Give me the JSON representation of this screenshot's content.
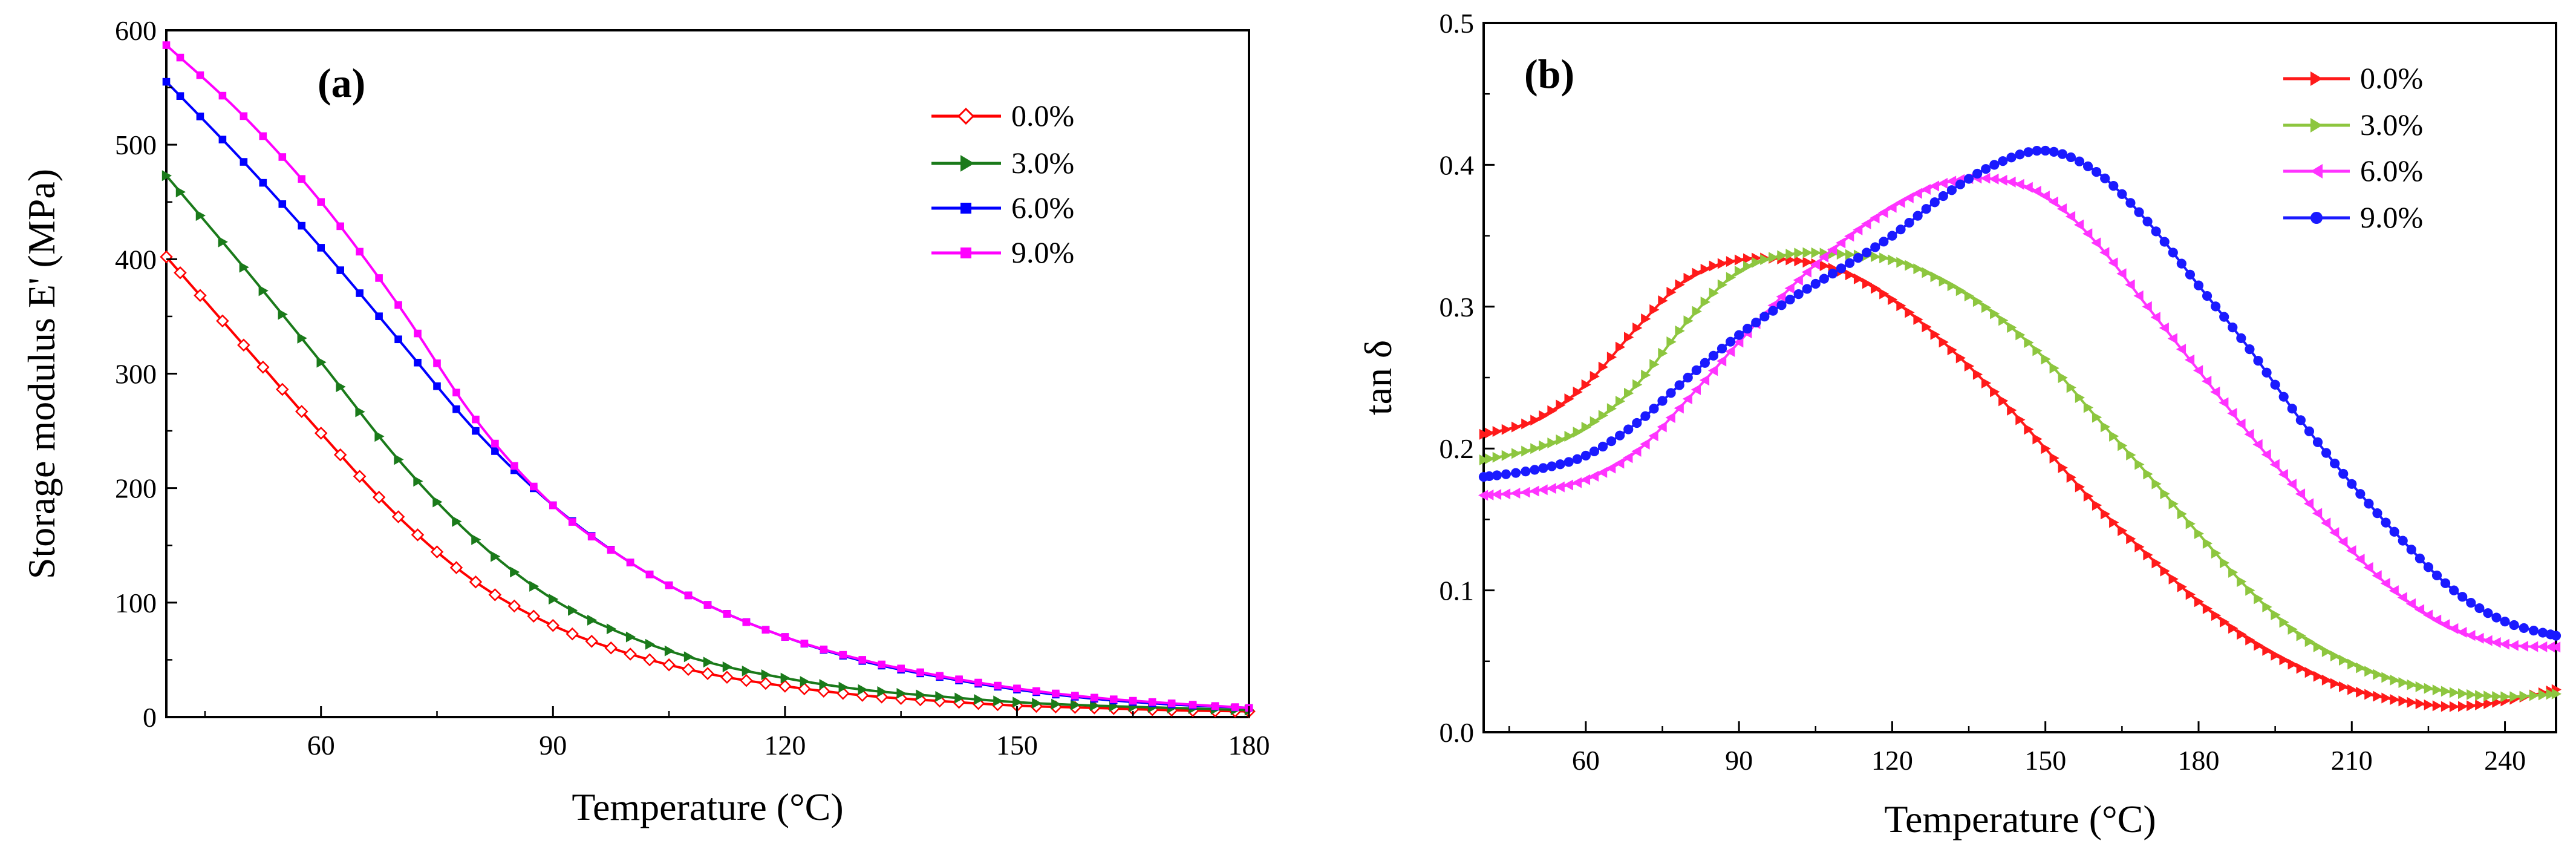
{
  "chart_data": [
    {
      "type": "line",
      "panel_label": "(a)",
      "title": "",
      "xlabel": "Temperature (°C)",
      "ylabel": "Storage modulus E' (MPa)",
      "xlim": [
        40,
        180
      ],
      "ylim": [
        0,
        600
      ],
      "xticks": [
        60,
        90,
        120,
        150,
        180
      ],
      "xtick_labels": [
        "60",
        "90",
        "120",
        "150",
        "180"
      ],
      "yticks": [
        0,
        100,
        200,
        300,
        400,
        500,
        600
      ],
      "ytick_labels": [
        "0",
        "100",
        "200",
        "300",
        "400",
        "500",
        "600"
      ],
      "grid": false,
      "legend_position": "top-right",
      "series": [
        {
          "name": "0.0%",
          "color": "#ff0000",
          "marker": "diamond",
          "x": [
            40,
            50,
            60,
            70,
            80,
            90,
            100,
            110,
            120,
            130,
            140,
            150,
            160,
            170,
            180
          ],
          "values": [
            402,
            325,
            248,
            175,
            118,
            80,
            55,
            38,
            27,
            19,
            14,
            10,
            8,
            6,
            5
          ]
        },
        {
          "name": "3.0%",
          "color": "#1a7a1a",
          "marker": "triangle-right",
          "x": [
            40,
            50,
            60,
            70,
            80,
            90,
            100,
            110,
            120,
            130,
            140,
            150,
            160,
            170,
            180
          ],
          "values": [
            473,
            393,
            310,
            225,
            155,
            103,
            70,
            48,
            34,
            24,
            18,
            13,
            10,
            8,
            6
          ]
        },
        {
          "name": "6.0%",
          "color": "#0000ff",
          "marker": "square",
          "x": [
            40,
            50,
            60,
            70,
            80,
            90,
            100,
            110,
            120,
            130,
            140,
            150,
            160,
            170,
            180
          ],
          "values": [
            555,
            485,
            410,
            330,
            250,
            185,
            135,
            98,
            70,
            49,
            35,
            24,
            16,
            11,
            8
          ]
        },
        {
          "name": "9.0%",
          "color": "#ff00ff",
          "marker": "square",
          "x": [
            40,
            50,
            60,
            70,
            80,
            90,
            100,
            110,
            120,
            130,
            140,
            150,
            160,
            170,
            180
          ],
          "values": [
            587,
            525,
            450,
            360,
            260,
            185,
            135,
            98,
            70,
            50,
            36,
            25,
            17,
            12,
            8
          ]
        }
      ]
    },
    {
      "type": "line",
      "panel_label": "(b)",
      "title": "",
      "xlabel": "Temperature (°C)",
      "ylabel": "tan δ",
      "xlim": [
        40,
        250
      ],
      "ylim": [
        0.0,
        0.5
      ],
      "xticks": [
        60,
        90,
        120,
        150,
        180,
        210,
        240
      ],
      "xtick_labels": [
        "60",
        "90",
        "120",
        "150",
        "180",
        "210",
        "240"
      ],
      "yticks": [
        0.0,
        0.1,
        0.2,
        0.3,
        0.4,
        0.5
      ],
      "ytick_labels": [
        "0.0",
        "0.1",
        "0.2",
        "0.3",
        "0.4",
        "0.5"
      ],
      "grid": false,
      "legend_position": "top-right",
      "series": [
        {
          "name": "0.0%",
          "color": "#ff1a1a",
          "marker": "triangle-right",
          "x": [
            40,
            50,
            60,
            70,
            80,
            90,
            100,
            110,
            120,
            130,
            140,
            150,
            160,
            170,
            180,
            190,
            200,
            210,
            220,
            230,
            240,
            250
          ],
          "values": [
            0.21,
            0.22,
            0.245,
            0.285,
            0.32,
            0.333,
            0.333,
            0.325,
            0.305,
            0.275,
            0.24,
            0.2,
            0.16,
            0.125,
            0.092,
            0.065,
            0.045,
            0.03,
            0.022,
            0.018,
            0.022,
            0.03
          ]
        },
        {
          "name": "3.0%",
          "color": "#8dc63f",
          "marker": "triangle-right",
          "x": [
            40,
            50,
            60,
            70,
            80,
            90,
            100,
            110,
            120,
            130,
            140,
            150,
            160,
            170,
            180,
            190,
            200,
            210,
            220,
            230,
            240,
            250
          ],
          "values": [
            0.192,
            0.2,
            0.215,
            0.245,
            0.29,
            0.325,
            0.337,
            0.337,
            0.333,
            0.318,
            0.295,
            0.263,
            0.222,
            0.182,
            0.14,
            0.1,
            0.068,
            0.048,
            0.035,
            0.028,
            0.025,
            0.027
          ]
        },
        {
          "name": "6.0%",
          "color": "#ff33ff",
          "marker": "triangle-left",
          "x": [
            40,
            50,
            60,
            70,
            80,
            90,
            100,
            110,
            120,
            130,
            140,
            150,
            160,
            170,
            180,
            190,
            200,
            210,
            220,
            230,
            240,
            250
          ],
          "values": [
            0.167,
            0.17,
            0.178,
            0.198,
            0.235,
            0.275,
            0.313,
            0.345,
            0.37,
            0.387,
            0.39,
            0.378,
            0.345,
            0.3,
            0.255,
            0.21,
            0.168,
            0.128,
            0.095,
            0.073,
            0.062,
            0.06
          ]
        },
        {
          "name": "9.0%",
          "color": "#1a1aff",
          "marker": "circle",
          "x": [
            40,
            50,
            60,
            70,
            80,
            90,
            100,
            110,
            120,
            130,
            140,
            150,
            160,
            170,
            180,
            190,
            200,
            210,
            220,
            230,
            240,
            250
          ],
          "values": [
            0.18,
            0.185,
            0.195,
            0.218,
            0.25,
            0.28,
            0.305,
            0.327,
            0.35,
            0.378,
            0.4,
            0.41,
            0.395,
            0.36,
            0.315,
            0.27,
            0.22,
            0.175,
            0.135,
            0.1,
            0.078,
            0.068
          ]
        }
      ]
    }
  ]
}
